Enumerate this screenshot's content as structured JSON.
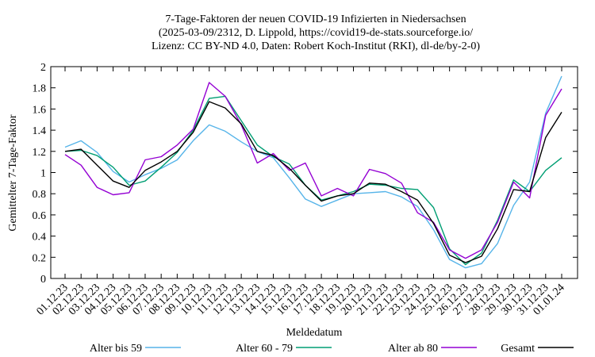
{
  "chart_data": {
    "type": "line",
    "title_lines": [
      "7-Tage-Faktoren der neuen COVID-19 Infizierten in Niedersachsen",
      "(2025-03-09/2312, D. Lippold, https://covid19-de-stats.sourceforge.io/",
      "Lizenz: CC BY-ND 4.0, Daten: Robert Koch-Institut (RKI), dl-de/by-2-0)"
    ],
    "xlabel": "Meldedatum",
    "ylabel": "Gemittelter 7-Tage-Faktor",
    "ylim": [
      0,
      2
    ],
    "yticks": [
      "0",
      "0.2",
      "0.4",
      "0.6",
      "0.8",
      "1",
      "1.2",
      "1.4",
      "1.6",
      "1.8",
      "2"
    ],
    "categories": [
      "01.12.23",
      "02.12.23",
      "03.12.23",
      "04.12.23",
      "05.12.23",
      "06.12.23",
      "07.12.23",
      "08.12.23",
      "09.12.23",
      "10.12.23",
      "11.12.23",
      "12.12.23",
      "13.12.23",
      "14.12.23",
      "15.12.23",
      "16.12.23",
      "17.12.23",
      "18.12.23",
      "19.12.23",
      "20.12.23",
      "21.12.23",
      "22.12.23",
      "23.12.23",
      "24.12.23",
      "25.12.23",
      "26.12.23",
      "27.12.23",
      "28.12.23",
      "29.12.23",
      "30.12.23",
      "31.12.23",
      "01.01.24"
    ],
    "grid": false,
    "legend_position": "bottom",
    "series": [
      {
        "name": "Alter bis 59",
        "color": "#56b4e9",
        "values": [
          1.24,
          1.3,
          1.19,
          1.01,
          0.91,
          0.98,
          1.04,
          1.12,
          1.3,
          1.45,
          1.39,
          1.29,
          1.2,
          1.14,
          0.95,
          0.75,
          0.68,
          0.74,
          0.8,
          0.81,
          0.82,
          0.77,
          0.68,
          0.46,
          0.18,
          0.1,
          0.14,
          0.33,
          0.69,
          0.91,
          1.56,
          1.91
        ]
      },
      {
        "name": "Alter 60 - 79",
        "color": "#009e73",
        "values": [
          1.2,
          1.21,
          1.16,
          1.05,
          0.88,
          0.92,
          1.05,
          1.19,
          1.4,
          1.7,
          1.72,
          1.49,
          1.26,
          1.15,
          1.08,
          0.88,
          0.74,
          0.78,
          0.82,
          0.89,
          0.88,
          0.85,
          0.84,
          0.67,
          0.28,
          0.13,
          0.24,
          0.55,
          0.93,
          0.82,
          1.02,
          1.14
        ]
      },
      {
        "name": "Alter ab 80",
        "color": "#9400d3",
        "values": [
          1.17,
          1.07,
          0.86,
          0.79,
          0.81,
          1.12,
          1.15,
          1.26,
          1.41,
          1.85,
          1.72,
          1.45,
          1.09,
          1.18,
          1.02,
          1.09,
          0.78,
          0.85,
          0.78,
          1.03,
          0.99,
          0.9,
          0.62,
          0.53,
          0.27,
          0.19,
          0.27,
          0.53,
          0.91,
          0.76,
          1.54,
          1.79
        ]
      },
      {
        "name": "Gesamt",
        "color": "#000000",
        "values": [
          1.2,
          1.22,
          1.07,
          0.92,
          0.86,
          1.02,
          1.1,
          1.2,
          1.38,
          1.67,
          1.61,
          1.46,
          1.2,
          1.16,
          1.04,
          0.88,
          0.73,
          0.78,
          0.8,
          0.9,
          0.89,
          0.82,
          0.74,
          0.52,
          0.22,
          0.15,
          0.21,
          0.47,
          0.84,
          0.82,
          1.33,
          1.57
        ]
      }
    ]
  }
}
